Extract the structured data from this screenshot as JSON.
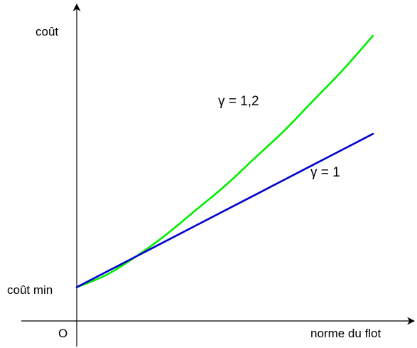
{
  "chart_data": {
    "type": "line",
    "title": "",
    "xlabel": "norme du flot",
    "ylabel": "coût",
    "origin_label": "O",
    "y_intercept_label": "coût min",
    "xlim": [
      0,
      1
    ],
    "ylim": [
      0,
      1
    ],
    "y_intercept": 0.1,
    "grid": false,
    "legend": "none",
    "series": [
      {
        "name": "γ = 1,2",
        "gamma": 1.2,
        "color": "#00ee00",
        "x": [
          0,
          0.1,
          0.2,
          0.3,
          0.4,
          0.5,
          0.6,
          0.7,
          0.8,
          0.9,
          1.0
        ],
        "y": [
          0.11,
          0.15,
          0.21,
          0.28,
          0.36,
          0.44,
          0.53,
          0.62,
          0.72,
          0.82,
          0.93
        ]
      },
      {
        "name": "γ = 1",
        "gamma": 1,
        "color": "#0000cc",
        "x": [
          0,
          0.1,
          0.2,
          0.3,
          0.4,
          0.5,
          0.6,
          0.7,
          0.8,
          0.9,
          1.0
        ],
        "y": [
          0.11,
          0.16,
          0.21,
          0.26,
          0.31,
          0.36,
          0.41,
          0.46,
          0.51,
          0.56,
          0.61
        ]
      }
    ]
  }
}
